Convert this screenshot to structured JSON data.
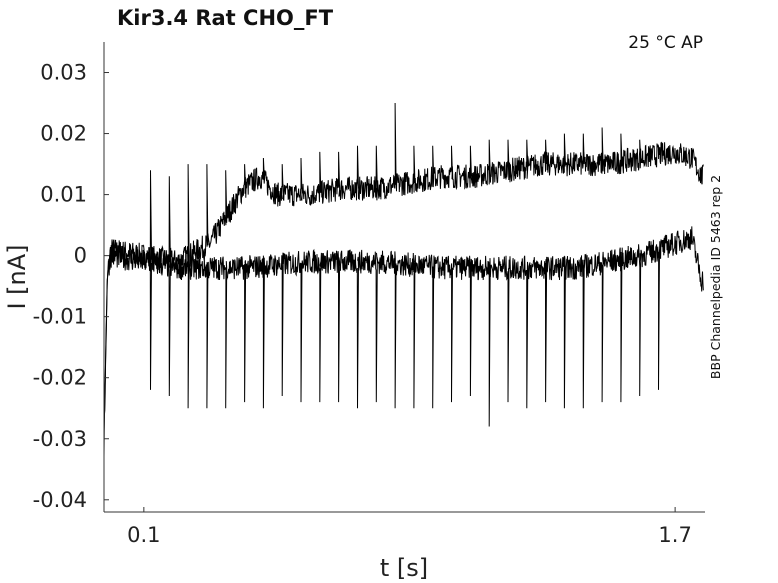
{
  "chart_data": {
    "type": "line",
    "title": "Kir3.4  Rat  CHO_FT",
    "annotation": "25 °C  AP",
    "side_label": "BBP Channelpedia ID 5463 rep 2",
    "xlabel": "t [s]",
    "ylabel": "I [nA]",
    "xlim": [
      -0.02,
      1.79
    ],
    "ylim": [
      -0.042,
      0.035
    ],
    "x_ticks": [
      {
        "value": 0.1,
        "label": "0.1"
      },
      {
        "value": 1.7,
        "label": "1.7"
      }
    ],
    "y_ticks": [
      {
        "value": 0.03,
        "label": "0.03"
      },
      {
        "value": 0.02,
        "label": "0.02"
      },
      {
        "value": 0.01,
        "label": "0.01"
      },
      {
        "value": 0,
        "label": "0"
      },
      {
        "value": -0.01,
        "label": "-0.01"
      },
      {
        "value": -0.02,
        "label": "-0.02"
      },
      {
        "value": -0.03,
        "label": "-0.03"
      },
      {
        "value": -0.04,
        "label": "-0.04"
      }
    ],
    "grid": false,
    "line_color": "#000000",
    "series": [
      {
        "points": [
          [
            -0.02,
            -0.031
          ],
          [
            -0.01,
            -0.004
          ],
          [
            0.0,
            0.001
          ],
          [
            0.1,
            0.0
          ],
          [
            0.2,
            -0.001
          ],
          [
            0.3,
            0.002
          ],
          [
            0.4,
            0.011
          ],
          [
            0.45,
            0.013
          ],
          [
            0.5,
            0.01
          ],
          [
            0.6,
            0.01
          ],
          [
            0.7,
            0.011
          ],
          [
            0.8,
            0.011
          ],
          [
            0.9,
            0.012
          ],
          [
            1.0,
            0.013
          ],
          [
            1.1,
            0.013
          ],
          [
            1.2,
            0.014
          ],
          [
            1.3,
            0.015
          ],
          [
            1.4,
            0.015
          ],
          [
            1.5,
            0.015
          ],
          [
            1.6,
            0.016
          ],
          [
            1.7,
            0.017
          ],
          [
            1.75,
            0.016
          ],
          [
            1.78,
            0.013
          ]
        ]
      },
      {
        "points": [
          [
            -0.02,
            -0.028
          ],
          [
            -0.01,
            -0.003
          ],
          [
            0.0,
            0.0
          ],
          [
            0.2,
            -0.002
          ],
          [
            0.4,
            -0.002
          ],
          [
            0.6,
            -0.001
          ],
          [
            0.8,
            -0.001
          ],
          [
            1.0,
            -0.002
          ],
          [
            1.2,
            -0.002
          ],
          [
            1.4,
            -0.002
          ],
          [
            1.6,
            0.0
          ],
          [
            1.7,
            0.002
          ],
          [
            1.75,
            0.003
          ],
          [
            1.78,
            -0.004
          ]
        ]
      }
    ],
    "spikes": {
      "min_values": [
        -0.022,
        -0.023,
        -0.025,
        -0.025,
        -0.025,
        -0.024,
        -0.025,
        -0.023,
        -0.024,
        -0.024,
        -0.024,
        -0.025,
        -0.024,
        -0.025,
        -0.025,
        -0.025,
        -0.024,
        -0.023,
        -0.028,
        -0.024,
        -0.025,
        -0.024,
        -0.025,
        -0.025,
        -0.024,
        -0.024,
        -0.023,
        -0.022
      ],
      "max_values": [
        0.014,
        0.013,
        0.015,
        0.015,
        0.014,
        0.015,
        0.016,
        0.015,
        0.016,
        0.017,
        0.017,
        0.018,
        0.018,
        0.025,
        0.018,
        0.018,
        0.018,
        0.018,
        0.019,
        0.019,
        0.019,
        0.019,
        0.02,
        0.02,
        0.021,
        0.02,
        0.019,
        0.018
      ],
      "x_start": 0.12,
      "x_end": 1.65
    }
  }
}
